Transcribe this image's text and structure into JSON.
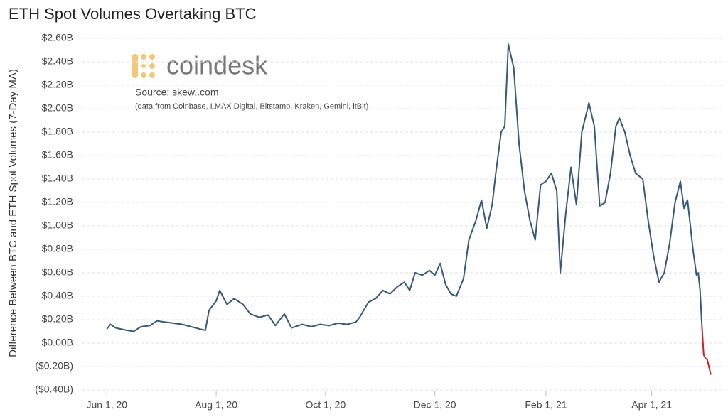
{
  "chart_data": {
    "type": "line",
    "title": "ETH Spot Volumes Overtaking BTC",
    "y_label": "Difference Between BTC and ETH Spot Volumes (7-Day MA)",
    "logo_text": "coindesk",
    "source": "Source: skew..com",
    "note": "(data from Coinbase, LMAX Digital, Bitstamp, Kraken, Gemini, itBit)",
    "x": [
      "2020-06-01",
      "2020-06-03",
      "2020-06-06",
      "2020-06-12",
      "2020-06-16",
      "2020-06-20",
      "2020-06-25",
      "2020-06-29",
      "2020-07-03",
      "2020-07-08",
      "2020-07-13",
      "2020-07-18",
      "2020-07-23",
      "2020-07-26",
      "2020-07-28",
      "2020-08-01",
      "2020-08-03",
      "2020-08-07",
      "2020-08-11",
      "2020-08-16",
      "2020-08-20",
      "2020-08-25",
      "2020-08-30",
      "2020-09-03",
      "2020-09-08",
      "2020-09-12",
      "2020-09-18",
      "2020-09-23",
      "2020-09-28",
      "2020-10-03",
      "2020-10-08",
      "2020-10-13",
      "2020-10-18",
      "2020-10-20",
      "2020-10-25",
      "2020-10-29",
      "2020-11-02",
      "2020-11-06",
      "2020-11-10",
      "2020-11-14",
      "2020-11-17",
      "2020-11-20",
      "2020-11-24",
      "2020-11-28",
      "2020-12-01",
      "2020-12-04",
      "2020-12-07",
      "2020-12-10",
      "2020-12-13",
      "2020-12-17",
      "2020-12-20",
      "2020-12-24",
      "2020-12-27",
      "2020-12-30",
      "2021-01-02",
      "2021-01-04",
      "2021-01-07",
      "2021-01-09",
      "2021-01-11",
      "2021-01-14",
      "2021-01-17",
      "2021-01-20",
      "2021-01-23",
      "2021-01-26",
      "2021-01-29",
      "2021-02-01",
      "2021-02-04",
      "2021-02-07",
      "2021-02-09",
      "2021-02-12",
      "2021-02-15",
      "2021-02-18",
      "2021-02-21",
      "2021-02-25",
      "2021-02-28",
      "2021-03-03",
      "2021-03-06",
      "2021-03-09",
      "2021-03-12",
      "2021-03-14",
      "2021-03-17",
      "2021-03-20",
      "2021-03-23",
      "2021-03-27",
      "2021-03-30",
      "2021-04-02",
      "2021-04-05",
      "2021-04-08",
      "2021-04-11",
      "2021-04-14",
      "2021-04-17",
      "2021-04-19",
      "2021-04-21",
      "2021-04-24",
      "2021-04-26",
      "2021-04-27",
      "2021-04-28",
      "2021-04-29",
      "2021-04-30",
      "2021-05-01",
      "2021-05-02",
      "2021-05-04"
    ],
    "series": [
      {
        "color": "#35587c",
        "values": [
          0.12,
          0.16,
          0.13,
          0.11,
          0.1,
          0.14,
          0.15,
          0.19,
          0.18,
          0.17,
          0.16,
          0.14,
          0.12,
          0.11,
          0.28,
          0.36,
          0.45,
          0.33,
          0.38,
          0.33,
          0.25,
          0.22,
          0.24,
          0.15,
          0.25,
          0.13,
          0.16,
          0.14,
          0.16,
          0.15,
          0.17,
          0.16,
          0.18,
          0.22,
          0.35,
          0.38,
          0.45,
          0.42,
          0.48,
          0.52,
          0.45,
          0.6,
          0.58,
          0.62,
          0.58,
          0.68,
          0.5,
          0.42,
          0.4,
          0.55,
          0.88,
          1.05,
          1.22,
          0.98,
          1.18,
          1.45,
          1.8,
          1.85,
          2.55,
          2.35,
          1.7,
          1.3,
          1.05,
          0.88,
          1.35,
          1.38,
          1.45,
          1.3,
          0.6,
          1.1,
          1.5,
          1.18,
          1.8,
          2.05,
          1.85,
          1.17,
          1.2,
          1.45,
          1.85,
          1.92,
          1.8,
          1.6,
          1.45,
          1.4,
          1.05,
          0.75,
          0.52,
          0.6,
          0.85,
          1.2,
          1.38,
          1.15,
          1.22,
          0.8,
          0.58,
          0.6,
          0.45,
          0.15,
          null,
          null,
          null,
          null
        ]
      },
      {
        "color": "#c8202a",
        "values": [
          null,
          null,
          null,
          null,
          null,
          null,
          null,
          null,
          null,
          null,
          null,
          null,
          null,
          null,
          null,
          null,
          null,
          null,
          null,
          null,
          null,
          null,
          null,
          null,
          null,
          null,
          null,
          null,
          null,
          null,
          null,
          null,
          null,
          null,
          null,
          null,
          null,
          null,
          null,
          null,
          null,
          null,
          null,
          null,
          null,
          null,
          null,
          null,
          null,
          null,
          null,
          null,
          null,
          null,
          null,
          null,
          null,
          null,
          null,
          null,
          null,
          null,
          null,
          null,
          null,
          null,
          null,
          null,
          null,
          null,
          null,
          null,
          null,
          null,
          null,
          null,
          null,
          null,
          null,
          null,
          null,
          null,
          null,
          null,
          null,
          null,
          null,
          null,
          null,
          null,
          null,
          null,
          null,
          null,
          null,
          null,
          null,
          0.15,
          -0.1,
          -0.13,
          -0.14,
          -0.27
        ]
      }
    ],
    "xlim": [
      "2020-05-18",
      "2021-05-10"
    ],
    "xticks": [
      {
        "value": "2020-06-01",
        "label": "Jun 1, 20"
      },
      {
        "value": "2020-08-01",
        "label": "Aug 1, 20"
      },
      {
        "value": "2020-10-01",
        "label": "Oct 1, 20"
      },
      {
        "value": "2020-12-01",
        "label": "Dec 1, 20"
      },
      {
        "value": "2021-02-01",
        "label": "Feb 1, 21"
      },
      {
        "value": "2021-04-01",
        "label": "Apr 1, 21"
      }
    ],
    "ylim": [
      -0.4,
      2.6
    ],
    "yticks": [
      {
        "value": -0.4,
        "label": "($0.40B)"
      },
      {
        "value": -0.2,
        "label": "($0.20B)"
      },
      {
        "value": 0,
        "label": "$0.00B"
      },
      {
        "value": 0.2,
        "label": "$0.20B"
      },
      {
        "value": 0.4,
        "label": "$0.40B"
      },
      {
        "value": 0.6,
        "label": "$0.60B"
      },
      {
        "value": 0.8,
        "label": "$0.80B"
      },
      {
        "value": 1.0,
        "label": "$1.00B"
      },
      {
        "value": 1.2,
        "label": "$1.20B"
      },
      {
        "value": 1.4,
        "label": "$1.40B"
      },
      {
        "value": 1.6,
        "label": "$1.60B"
      },
      {
        "value": 1.8,
        "label": "$1.80B"
      },
      {
        "value": 2.0,
        "label": "$2.00B"
      },
      {
        "value": 2.2,
        "label": "$2.20B"
      },
      {
        "value": 2.4,
        "label": "$2.40B"
      },
      {
        "value": 2.6,
        "label": "$2.60B"
      }
    ],
    "grid": true
  }
}
